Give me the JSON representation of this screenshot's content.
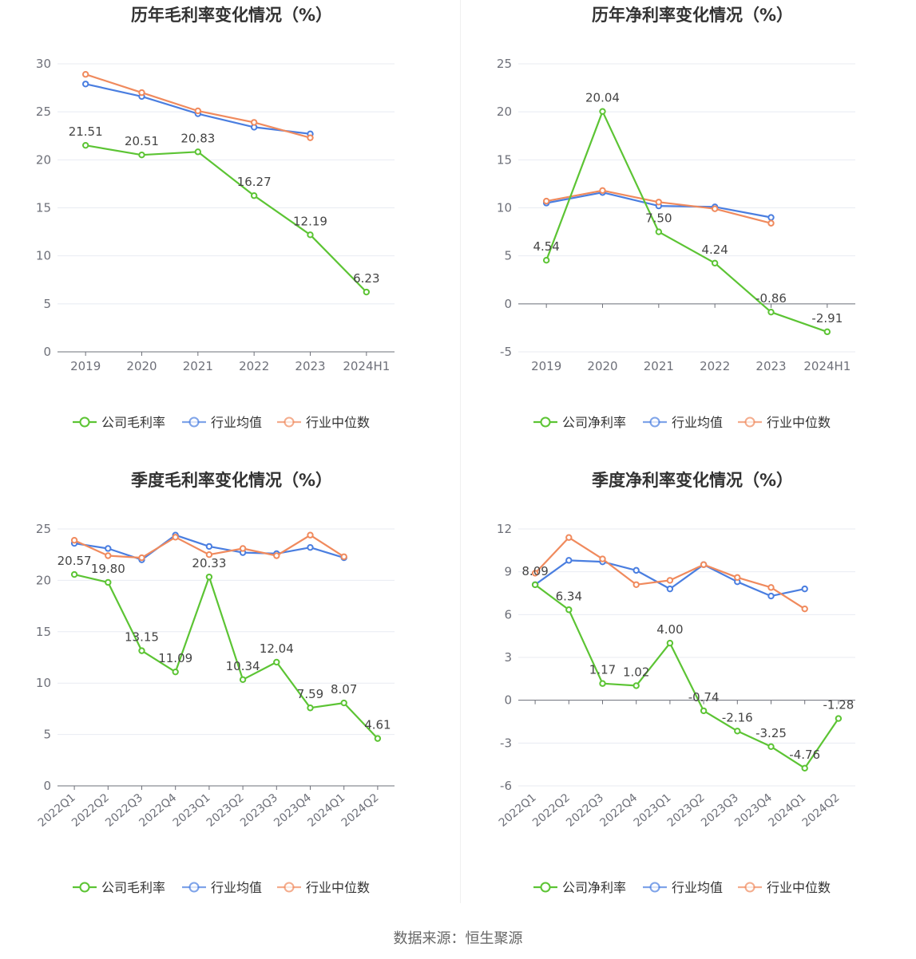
{
  "source": "数据来源：恒生聚源",
  "colors": {
    "company": "#5cc434",
    "industry_avg": "#4a7ee0",
    "industry_median": "#f08a5d"
  },
  "chart_data": [
    {
      "type": "line",
      "title": "历年毛利率变化情况（%）",
      "categories": [
        "2019",
        "2020",
        "2021",
        "2022",
        "2023",
        "2024H1"
      ],
      "ylim": [
        0,
        30
      ],
      "yticks": [
        0,
        5,
        10,
        15,
        20,
        25,
        30
      ],
      "ytick_labels": [
        "0",
        "5",
        "10",
        "15",
        "20",
        "25",
        "30"
      ],
      "series": [
        {
          "name": "公司毛利率",
          "key": "company",
          "values": [
            21.51,
            20.51,
            20.83,
            16.27,
            12.19,
            6.23
          ],
          "labels": [
            "21.51",
            "20.51",
            "20.83",
            "16.27",
            "12.19",
            "6.23"
          ]
        },
        {
          "name": "行业均值",
          "key": "industry_avg",
          "values": [
            27.9,
            26.6,
            24.8,
            23.4,
            22.7,
            null
          ]
        },
        {
          "name": "行业中位数",
          "key": "industry_median",
          "values": [
            28.9,
            27.0,
            25.1,
            23.9,
            22.3,
            null
          ]
        }
      ]
    },
    {
      "type": "line",
      "title": "历年净利率变化情况（%）",
      "categories": [
        "2019",
        "2020",
        "2021",
        "2022",
        "2023",
        "2024H1"
      ],
      "ylim": [
        -5,
        25
      ],
      "yticks": [
        -5,
        0,
        5,
        10,
        15,
        20,
        25
      ],
      "ytick_labels": [
        "-5",
        "0",
        "5",
        "10",
        "15",
        "20",
        "25"
      ],
      "series": [
        {
          "name": "公司净利率",
          "key": "company",
          "values": [
            4.54,
            20.04,
            7.5,
            4.24,
            -0.86,
            -2.91
          ],
          "labels": [
            "4.54",
            "20.04",
            "7.50",
            "4.24",
            "-0.86",
            "-2.91"
          ]
        },
        {
          "name": "行业均值",
          "key": "industry_avg",
          "values": [
            10.5,
            11.6,
            10.2,
            10.1,
            9.0,
            null
          ]
        },
        {
          "name": "行业中位数",
          "key": "industry_median",
          "values": [
            10.7,
            11.8,
            10.6,
            9.9,
            8.4,
            null
          ]
        }
      ]
    },
    {
      "type": "line",
      "title": "季度毛利率变化情况（%）",
      "categories": [
        "2022Q1",
        "2022Q2",
        "2022Q3",
        "2022Q4",
        "2023Q1",
        "2023Q2",
        "2023Q3",
        "2023Q4",
        "2024Q1",
        "2024Q2"
      ],
      "ylim": [
        0,
        25
      ],
      "yticks": [
        0,
        5,
        10,
        15,
        20,
        25
      ],
      "ytick_labels": [
        "0",
        "5",
        "10",
        "15",
        "20",
        "25"
      ],
      "series": [
        {
          "name": "公司毛利率",
          "key": "company",
          "values": [
            20.57,
            19.8,
            13.15,
            11.09,
            20.33,
            10.34,
            12.04,
            7.59,
            8.07,
            4.61
          ],
          "labels": [
            "20.57",
            "19.80",
            "13.15",
            "11.09",
            "20.33",
            "10.34",
            "12.04",
            "7.59",
            "8.07",
            "4.61"
          ]
        },
        {
          "name": "行业均值",
          "key": "industry_avg",
          "values": [
            23.6,
            23.1,
            22.0,
            24.4,
            23.3,
            22.7,
            22.6,
            23.2,
            22.2,
            null
          ]
        },
        {
          "name": "行业中位数",
          "key": "industry_median",
          "values": [
            23.9,
            22.4,
            22.2,
            24.2,
            22.5,
            23.1,
            22.4,
            24.4,
            22.3,
            null
          ]
        }
      ]
    },
    {
      "type": "line",
      "title": "季度净利率变化情况（%）",
      "categories": [
        "2022Q1",
        "2022Q2",
        "2022Q3",
        "2022Q4",
        "2023Q1",
        "2023Q2",
        "2023Q3",
        "2023Q4",
        "2024Q1",
        "2024Q2"
      ],
      "ylim": [
        -6,
        12
      ],
      "yticks": [
        -6,
        -3,
        0,
        3,
        6,
        9,
        12
      ],
      "ytick_labels": [
        "-6",
        "-3",
        "0",
        "3",
        "6",
        "9",
        "12"
      ],
      "series": [
        {
          "name": "公司净利率",
          "key": "company",
          "values": [
            8.09,
            6.34,
            1.17,
            1.02,
            4.0,
            -0.74,
            -2.16,
            -3.25,
            -4.76,
            -1.28
          ],
          "labels": [
            "8.09",
            "6.34",
            "1.17",
            "1.02",
            "4.00",
            "-0.74",
            "-2.16",
            "-3.25",
            "-4.76",
            "-1.28"
          ]
        },
        {
          "name": "行业均值",
          "key": "industry_avg",
          "values": [
            8.1,
            9.8,
            9.7,
            9.1,
            7.8,
            9.5,
            8.3,
            7.3,
            7.8,
            null
          ]
        },
        {
          "name": "行业中位数",
          "key": "industry_median",
          "values": [
            8.9,
            11.4,
            9.9,
            8.1,
            8.4,
            9.5,
            8.6,
            7.9,
            6.4,
            null
          ]
        }
      ]
    }
  ]
}
